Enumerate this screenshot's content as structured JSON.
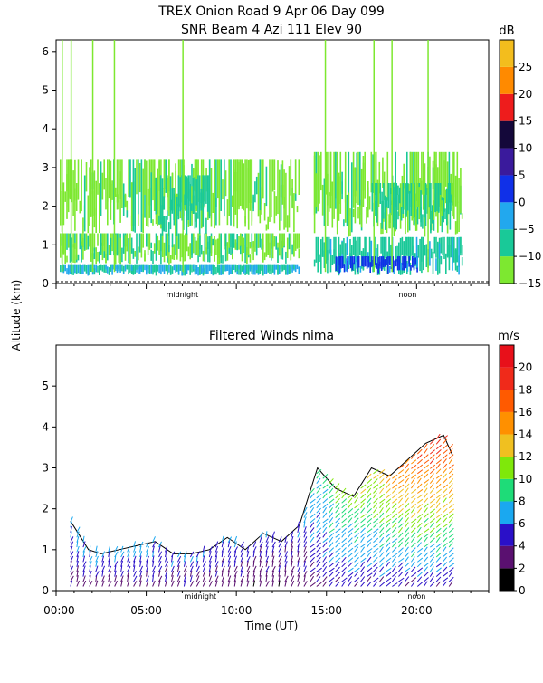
{
  "figure": {
    "title_line1": "TREX Onion Road   9 Apr 06 Day 099",
    "title_line2": "SNR Beam 4 Azi 111 Elev 90",
    "y_axis_label": "Altitude (km)",
    "x_axis_label": "Time (UT)"
  },
  "chart_data": [
    {
      "type": "heatmap",
      "name": "snr-panel",
      "title": "SNR Beam 4 Azi 111 Elev 90",
      "ylabel": "Altitude (km)",
      "ylim": [
        0,
        6.3
      ],
      "yticks": [
        0,
        1,
        2,
        3,
        4,
        5,
        6
      ],
      "xlim": [
        0,
        24
      ],
      "day_markers": [
        {
          "label": "midnight",
          "x": 7
        },
        {
          "label": "noon",
          "x": 19.5
        }
      ],
      "colorbar": {
        "unit": "dB",
        "range": [
          -15,
          30
        ],
        "ticks": [
          -15,
          -10,
          -5,
          0,
          5,
          10,
          15,
          20,
          25
        ],
        "tick_labels": [
          "−15",
          "−10",
          "−5",
          "0",
          "5",
          "10",
          "15",
          "20",
          "25"
        ],
        "bands": [
          {
            "from": -15,
            "to": -10,
            "color": "#7de830"
          },
          {
            "from": -10,
            "to": -5,
            "color": "#19c998"
          },
          {
            "from": -5,
            "to": 0,
            "color": "#22a8ee"
          },
          {
            "from": 0,
            "to": 5,
            "color": "#1030e8"
          },
          {
            "from": 5,
            "to": 10,
            "color": "#3a1a9c"
          },
          {
            "from": 10,
            "to": 15,
            "color": "#14083a"
          },
          {
            "from": 15,
            "to": 20,
            "color": "#ee1c1c"
          },
          {
            "from": 20,
            "to": 25,
            "color": "#ff8a00"
          },
          {
            "from": 25,
            "to": 30,
            "color": "#f3bd1d"
          }
        ]
      },
      "regions": [
        {
          "t": [
            0.2,
            13.5
          ],
          "z": [
            0.2,
            0.5
          ],
          "level": -5
        },
        {
          "t": [
            0.2,
            13.5
          ],
          "z": [
            0.5,
            1.3
          ],
          "level": -10
        },
        {
          "t": [
            0.2,
            13.5
          ],
          "z": [
            1.3,
            3.2
          ],
          "level": -12
        },
        {
          "t": [
            5.5,
            8.5
          ],
          "z": [
            1.2,
            2.8
          ],
          "level": -8
        },
        {
          "t": [
            14.3,
            22.5
          ],
          "z": [
            0.2,
            1.2
          ],
          "level": -7
        },
        {
          "t": [
            15.5,
            20.0
          ],
          "z": [
            0.25,
            0.7
          ],
          "level": 2
        },
        {
          "t": [
            14.3,
            22.5
          ],
          "z": [
            1.2,
            3.4
          ],
          "level": -12
        },
        {
          "t": [
            17.5,
            22.0
          ],
          "z": [
            1.3,
            2.6
          ],
          "level": -8
        }
      ]
    },
    {
      "type": "vector-field",
      "name": "wind-panel",
      "title": "Filtered Winds nima",
      "xlabel": "Time (UT)",
      "ylabel": "Altitude (km)",
      "xlim": [
        0,
        24
      ],
      "xticks": [
        0.17,
        5,
        10,
        15,
        20
      ],
      "xtick_labels": [
        "00:00",
        "05:00",
        "10:00",
        "15:00",
        "20:00"
      ],
      "ylim": [
        0,
        6.0
      ],
      "yticks": [
        0,
        1,
        2,
        3,
        4,
        5
      ],
      "day_markers": [
        {
          "label": "midnight",
          "x": 8
        },
        {
          "label": "noon",
          "x": 20
        }
      ],
      "colorbar": {
        "unit": "m/s",
        "range": [
          0,
          22
        ],
        "ticks": [
          0,
          2,
          4,
          6,
          8,
          10,
          12,
          14,
          16,
          18,
          20
        ],
        "bands": [
          {
            "from": 0,
            "to": 2,
            "color": "#000000"
          },
          {
            "from": 2,
            "to": 4,
            "color": "#5a1070"
          },
          {
            "from": 4,
            "to": 6,
            "color": "#2a10c8"
          },
          {
            "from": 6,
            "to": 8,
            "color": "#1aa8f0"
          },
          {
            "from": 8,
            "to": 10,
            "color": "#1edc78"
          },
          {
            "from": 10,
            "to": 12,
            "color": "#7fe80a"
          },
          {
            "from": 12,
            "to": 14,
            "color": "#f0c020"
          },
          {
            "from": 14,
            "to": 16,
            "color": "#ff9000"
          },
          {
            "from": 16,
            "to": 18,
            "color": "#ff5a00"
          },
          {
            "from": 18,
            "to": 20,
            "color": "#f02a1a"
          },
          {
            "from": 20,
            "to": 22,
            "color": "#e8101a"
          }
        ]
      },
      "coverage": [
        {
          "t": 0.8,
          "top": 1.7
        },
        {
          "t": 1.8,
          "top": 1.0
        },
        {
          "t": 2.5,
          "top": 0.9
        },
        {
          "t": 3.5,
          "top": 1.0
        },
        {
          "t": 4.5,
          "top": 1.1
        },
        {
          "t": 5.5,
          "top": 1.2
        },
        {
          "t": 6.5,
          "top": 0.9
        },
        {
          "t": 7.5,
          "top": 0.9
        },
        {
          "t": 8.5,
          "top": 1.0
        },
        {
          "t": 9.5,
          "top": 1.3
        },
        {
          "t": 10.5,
          "top": 1.0
        },
        {
          "t": 11.5,
          "top": 1.4
        },
        {
          "t": 12.5,
          "top": 1.2
        },
        {
          "t": 13.5,
          "top": 1.6
        },
        {
          "t": 14.5,
          "top": 3.0
        },
        {
          "t": 15.5,
          "top": 2.5
        },
        {
          "t": 16.5,
          "top": 2.3
        },
        {
          "t": 17.5,
          "top": 3.0
        },
        {
          "t": 18.5,
          "top": 2.8
        },
        {
          "t": 19.5,
          "top": 3.2
        },
        {
          "t": 20.5,
          "top": 3.6
        },
        {
          "t": 21.5,
          "top": 3.8
        },
        {
          "t": 22.0,
          "top": 3.3
        }
      ],
      "speed_profile": [
        {
          "t": 1.0,
          "low": 3,
          "high": 7
        },
        {
          "t": 5.0,
          "low": 3,
          "high": 7
        },
        {
          "t": 9.0,
          "low": 3,
          "high": 6
        },
        {
          "t": 13.0,
          "low": 2,
          "high": 5
        },
        {
          "t": 15.0,
          "low": 4,
          "high": 10
        },
        {
          "t": 17.0,
          "low": 4,
          "high": 12
        },
        {
          "t": 19.0,
          "low": 4,
          "high": 16
        },
        {
          "t": 21.0,
          "low": 4,
          "high": 20
        },
        {
          "t": 22.0,
          "low": 4,
          "high": 18
        }
      ]
    }
  ]
}
